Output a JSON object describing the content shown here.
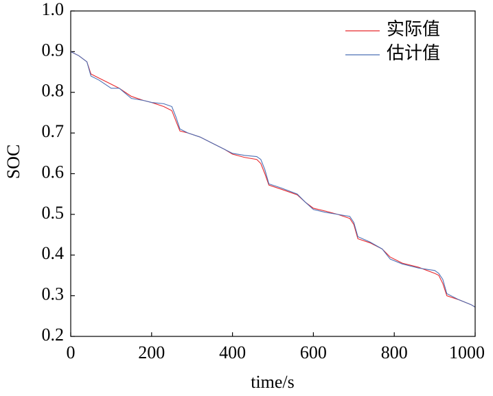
{
  "chart_data": {
    "type": "line",
    "x_label": "time/s",
    "y_label": "SOC",
    "x": [
      0,
      20,
      40,
      50,
      70,
      100,
      120,
      150,
      180,
      200,
      230,
      250,
      260,
      270,
      290,
      320,
      350,
      380,
      400,
      430,
      460,
      470,
      480,
      490,
      520,
      560,
      580,
      600,
      630,
      660,
      690,
      700,
      710,
      740,
      770,
      790,
      820,
      860,
      900,
      910,
      920,
      930,
      960,
      990,
      1000
    ],
    "series": [
      {
        "name": "实际值",
        "color": "#e8262a",
        "values": [
          0.9,
          0.89,
          0.875,
          0.845,
          0.835,
          0.82,
          0.81,
          0.79,
          0.78,
          0.775,
          0.765,
          0.755,
          0.73,
          0.705,
          0.7,
          0.69,
          0.675,
          0.66,
          0.648,
          0.64,
          0.635,
          0.625,
          0.6,
          0.572,
          0.562,
          0.548,
          0.53,
          0.515,
          0.508,
          0.5,
          0.49,
          0.475,
          0.44,
          0.43,
          0.415,
          0.395,
          0.38,
          0.37,
          0.355,
          0.35,
          0.33,
          0.3,
          0.29,
          0.278,
          0.272
        ]
      },
      {
        "name": "估计值",
        "color": "#4a6fb5",
        "values": [
          0.9,
          0.89,
          0.875,
          0.84,
          0.83,
          0.81,
          0.81,
          0.785,
          0.78,
          0.775,
          0.772,
          0.765,
          0.74,
          0.71,
          0.7,
          0.69,
          0.675,
          0.66,
          0.65,
          0.645,
          0.642,
          0.635,
          0.61,
          0.575,
          0.565,
          0.55,
          0.53,
          0.512,
          0.505,
          0.5,
          0.495,
          0.48,
          0.445,
          0.432,
          0.415,
          0.39,
          0.378,
          0.368,
          0.362,
          0.355,
          0.34,
          0.305,
          0.29,
          0.278,
          0.272
        ]
      }
    ],
    "xlim": [
      0,
      1000
    ],
    "xticks": [
      0,
      200,
      400,
      600,
      800,
      1000
    ],
    "ylim": [
      0.2,
      1.0
    ],
    "yticks": [
      0.2,
      0.3,
      0.4,
      0.5,
      0.6,
      0.7,
      0.8,
      0.9,
      {
        "value": 1.0,
        "label": "1.0"
      }
    ],
    "grid": false,
    "legend": "upper right"
  }
}
